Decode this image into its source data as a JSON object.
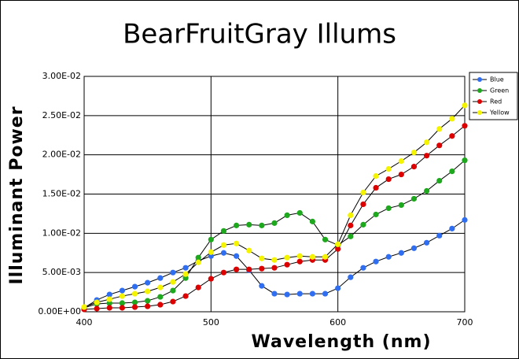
{
  "chart_data": {
    "type": "line",
    "title": "BearFruitGray Illums",
    "x_label": "Wavelength (nm)",
    "y_label": "Illuminant Power",
    "x": [
      400,
      410,
      420,
      430,
      440,
      450,
      460,
      470,
      480,
      490,
      500,
      510,
      520,
      530,
      540,
      550,
      560,
      570,
      580,
      590,
      600,
      610,
      620,
      630,
      640,
      650,
      660,
      670,
      680,
      690,
      700
    ],
    "series": [
      {
        "name": "Blue",
        "color": "#2f6ef0",
        "values": [
          0.0005,
          0.0015,
          0.0022,
          0.0027,
          0.0032,
          0.0037,
          0.0043,
          0.005,
          0.0056,
          0.0065,
          0.0071,
          0.0075,
          0.0071,
          0.0053,
          0.0033,
          0.0023,
          0.0022,
          0.0023,
          0.0023,
          0.0023,
          0.003,
          0.0044,
          0.0056,
          0.0064,
          0.007,
          0.0075,
          0.0081,
          0.0088,
          0.0097,
          0.0106,
          0.0117
        ]
      },
      {
        "name": "Green",
        "color": "#1ea81e",
        "values": [
          0.0005,
          0.001,
          0.0011,
          0.0011,
          0.0012,
          0.0014,
          0.0019,
          0.0027,
          0.0043,
          0.0069,
          0.0092,
          0.0103,
          0.011,
          0.0111,
          0.011,
          0.0113,
          0.0123,
          0.0126,
          0.0115,
          0.0092,
          0.0085,
          0.0096,
          0.0111,
          0.0124,
          0.0132,
          0.0136,
          0.0144,
          0.0154,
          0.0167,
          0.0179,
          0.0193
        ]
      },
      {
        "name": "Red",
        "color": "#dc0000",
        "values": [
          0.0003,
          0.0004,
          0.0005,
          0.0005,
          0.0006,
          0.0007,
          0.0009,
          0.0013,
          0.002,
          0.0031,
          0.0042,
          0.005,
          0.0054,
          0.0054,
          0.0055,
          0.0056,
          0.006,
          0.0064,
          0.0066,
          0.0066,
          0.008,
          0.011,
          0.0137,
          0.0158,
          0.0169,
          0.0175,
          0.0185,
          0.0199,
          0.0212,
          0.0224,
          0.0237
        ]
      },
      {
        "name": "Yellow",
        "color": "#f4f400",
        "values": [
          0.0006,
          0.0012,
          0.0016,
          0.002,
          0.0023,
          0.0026,
          0.0031,
          0.0038,
          0.0048,
          0.0063,
          0.0076,
          0.0085,
          0.0087,
          0.0078,
          0.0068,
          0.0066,
          0.0069,
          0.0071,
          0.007,
          0.007,
          0.0086,
          0.0123,
          0.0152,
          0.0173,
          0.0182,
          0.0192,
          0.0203,
          0.0216,
          0.0233,
          0.0246,
          0.0263
        ]
      }
    ],
    "xlim": [
      400,
      700
    ],
    "xticks": [
      400,
      500,
      600,
      700
    ],
    "ylim": [
      0,
      0.03
    ],
    "yticks": [
      {
        "value": 0,
        "label": "0.00E+00"
      },
      {
        "value": 0.005,
        "label": "5.00E-03"
      },
      {
        "value": 0.01,
        "label": "1.00E-02"
      },
      {
        "value": 0.015,
        "label": "1.50E-02"
      },
      {
        "value": 0.02,
        "label": "2.00E-02"
      },
      {
        "value": 0.025,
        "label": "2.50E-02"
      },
      {
        "value": 0.03,
        "label": "3.00E-02"
      }
    ],
    "grid": true,
    "legend": "right"
  }
}
